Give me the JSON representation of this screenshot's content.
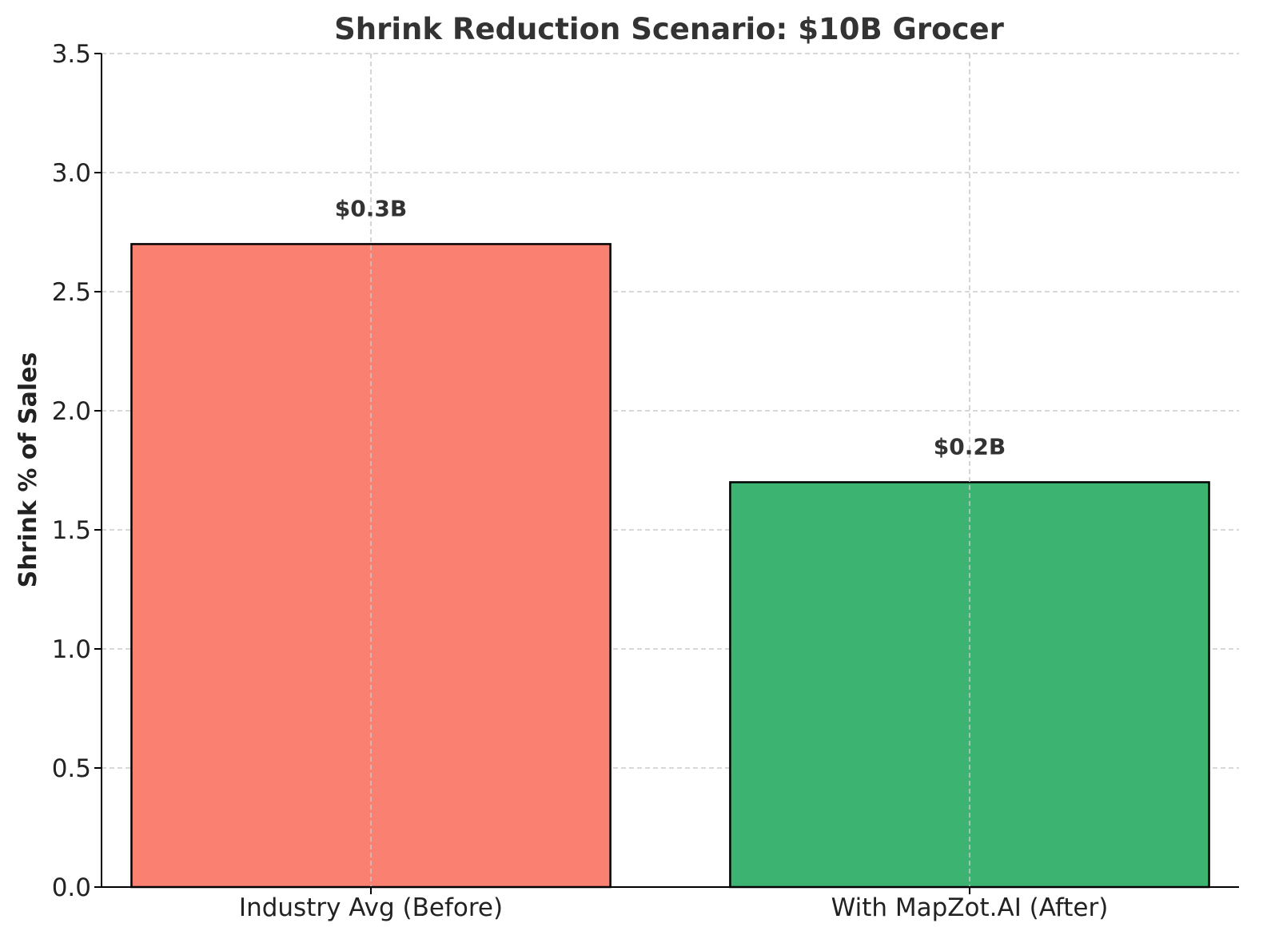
{
  "chart_data": {
    "type": "bar",
    "title": "Shrink Reduction Scenario: $10B Grocer",
    "xlabel": "",
    "ylabel": "Shrink % of Sales",
    "categories": [
      "Industry Avg (Before)",
      "With MapZot.AI (After)"
    ],
    "values": [
      2.7,
      1.7
    ],
    "data_labels": [
      "$0.3B",
      "$0.2B"
    ],
    "colors": [
      "#fa8072",
      "#3cb371"
    ],
    "ylim": [
      0,
      3.5
    ],
    "yticks": [
      "0.0",
      "0.5",
      "1.0",
      "1.5",
      "2.0",
      "2.5",
      "3.0",
      "3.5"
    ],
    "grid": true,
    "legend": "none"
  }
}
